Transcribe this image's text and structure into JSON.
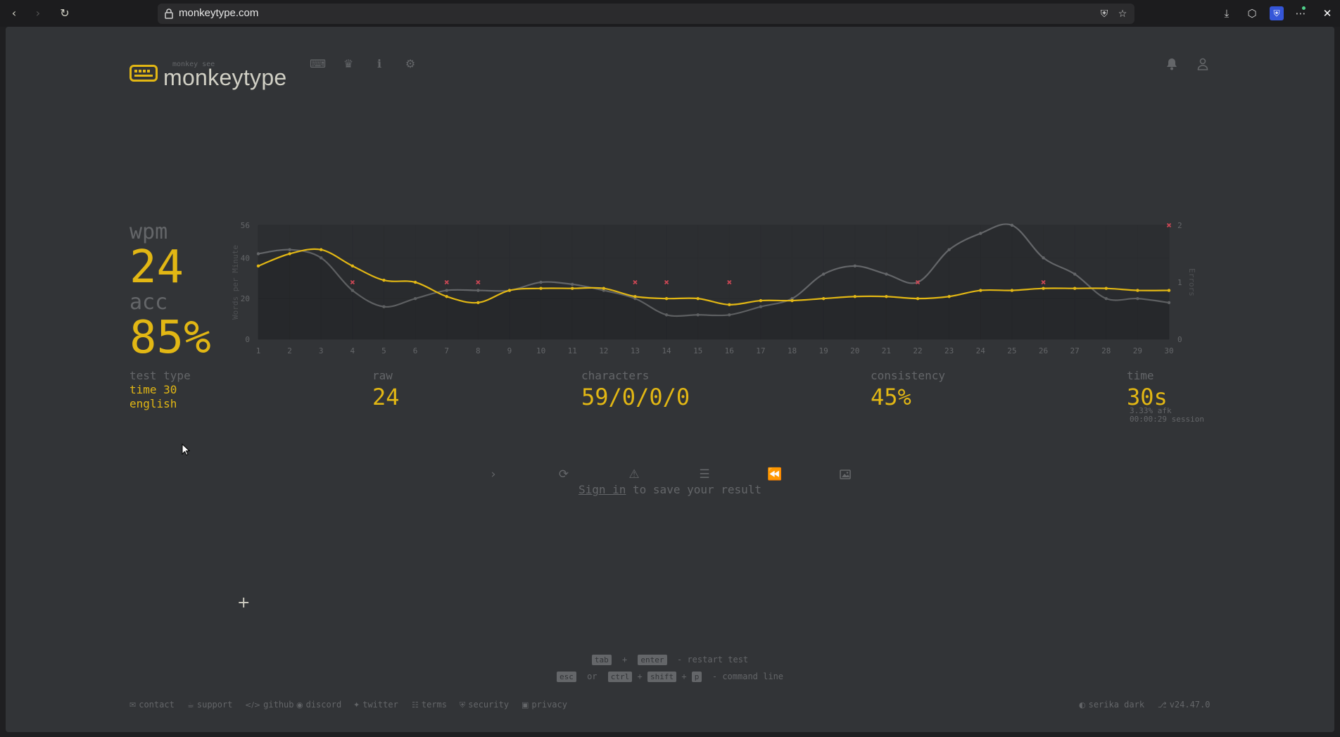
{
  "browser": {
    "url": "monkeytype.com"
  },
  "header": {
    "logo_sub": "monkey see",
    "logo_text": "monkeytype"
  },
  "results": {
    "wpm_label": "wpm",
    "wpm_value": "24",
    "acc_label": "acc",
    "acc_value": "85%",
    "test_type_label": "test type",
    "test_type_line1": "time 30",
    "test_type_line2": "english",
    "raw_label": "raw",
    "raw_value": "24",
    "characters_label": "characters",
    "characters_value": "59/0/0/0",
    "consistency_label": "consistency",
    "consistency_value": "45%",
    "time_label": "time",
    "time_value": "30s",
    "afk": "3.33% afk",
    "session": "00:00:29 session"
  },
  "signin": {
    "link": "Sign in",
    "text": " to save your result"
  },
  "hints": {
    "line1": {
      "k1": "tab",
      "plus": "+",
      "k2": "enter",
      "desc": " - restart test"
    },
    "line2": {
      "k1": "esc",
      "or": "or",
      "k2": "ctrl",
      "k3": "shift",
      "k4": "p",
      "desc": " - command line"
    }
  },
  "footer": {
    "contact": "contact",
    "support": "support",
    "github": "github",
    "discord": "discord",
    "twitter": "twitter",
    "terms": "terms",
    "security": "security",
    "privacy": "privacy",
    "theme": "serika dark",
    "version": "v24.47.0"
  },
  "colors": {
    "bg": "#323437",
    "main": "#e2b714",
    "sub": "#646669",
    "text": "#d1d0c5",
    "error": "#ca4754"
  },
  "chart_data": {
    "type": "line",
    "x": [
      1,
      2,
      3,
      4,
      5,
      6,
      7,
      8,
      9,
      10,
      11,
      12,
      13,
      14,
      15,
      16,
      17,
      18,
      19,
      20,
      21,
      22,
      23,
      24,
      25,
      26,
      27,
      28,
      29,
      30
    ],
    "ylabel": "Words per Minute",
    "y2label": "Errors",
    "ylim": [
      0,
      56
    ],
    "y2lim": [
      0,
      2
    ],
    "yticks": [
      0,
      20,
      40,
      56
    ],
    "y2ticks": [
      0,
      1,
      2
    ],
    "series": [
      {
        "values": [
          36,
          42,
          44,
          36,
          29,
          28,
          21,
          18,
          24,
          25,
          25,
          25,
          21,
          20,
          20,
          17,
          19,
          19,
          20,
          21,
          21,
          20,
          21,
          24,
          24,
          25,
          25,
          25,
          24,
          24
        ],
        "color": "#e2b714"
      },
      {
        "values": [
          42,
          44,
          40,
          24,
          16,
          20,
          24,
          24,
          24,
          28,
          27,
          24,
          20,
          12,
          12,
          12,
          16,
          20,
          32,
          36,
          32,
          28,
          44,
          52,
          56,
          40,
          32,
          20,
          20,
          18
        ],
        "color": "#646669"
      },
      {
        "type": "scatter",
        "axis": "y2",
        "points": [
          [
            4,
            1
          ],
          [
            7,
            1
          ],
          [
            8,
            1
          ],
          [
            13,
            1
          ],
          [
            14,
            1
          ],
          [
            16,
            1
          ],
          [
            22,
            1
          ],
          [
            26,
            1
          ],
          [
            30,
            2
          ]
        ],
        "color": "#ca4754"
      }
    ]
  }
}
